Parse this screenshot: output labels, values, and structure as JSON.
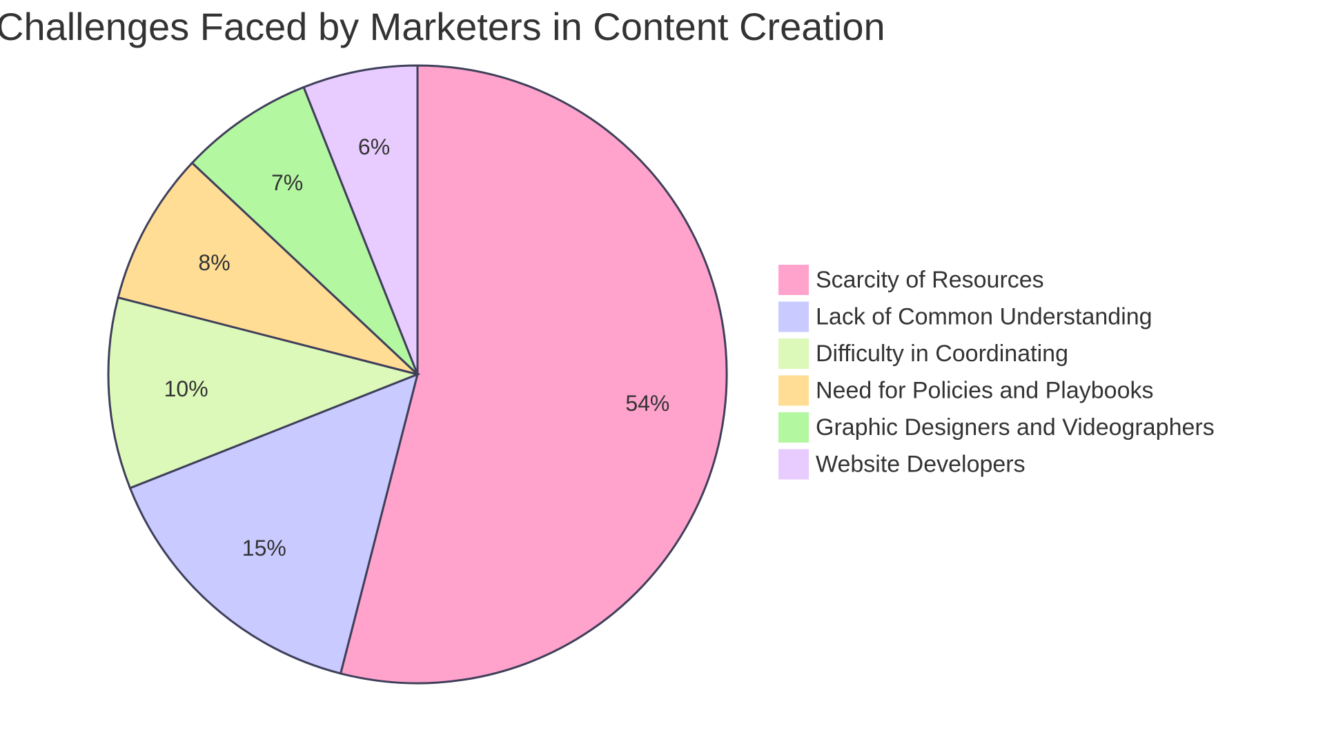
{
  "chart_data": {
    "type": "pie",
    "title": "Challenges Faced by Marketers in Content Creation",
    "categories": [
      "Scarcity of Resources",
      "Lack of Common Understanding",
      "Difficulty in Coordinating",
      "Need for Policies and Playbooks",
      "Graphic Designers and Videographers",
      "Website Developers"
    ],
    "values": [
      54,
      15,
      10,
      8,
      7,
      6
    ],
    "value_labels": [
      "54%",
      "15%",
      "10%",
      "8%",
      "7%",
      "6%"
    ],
    "colors": [
      "#ffa3cc",
      "#c9caff",
      "#dcf9b9",
      "#ffdd95",
      "#b4f7a1",
      "#e8ccff"
    ],
    "legend_position": "right"
  }
}
